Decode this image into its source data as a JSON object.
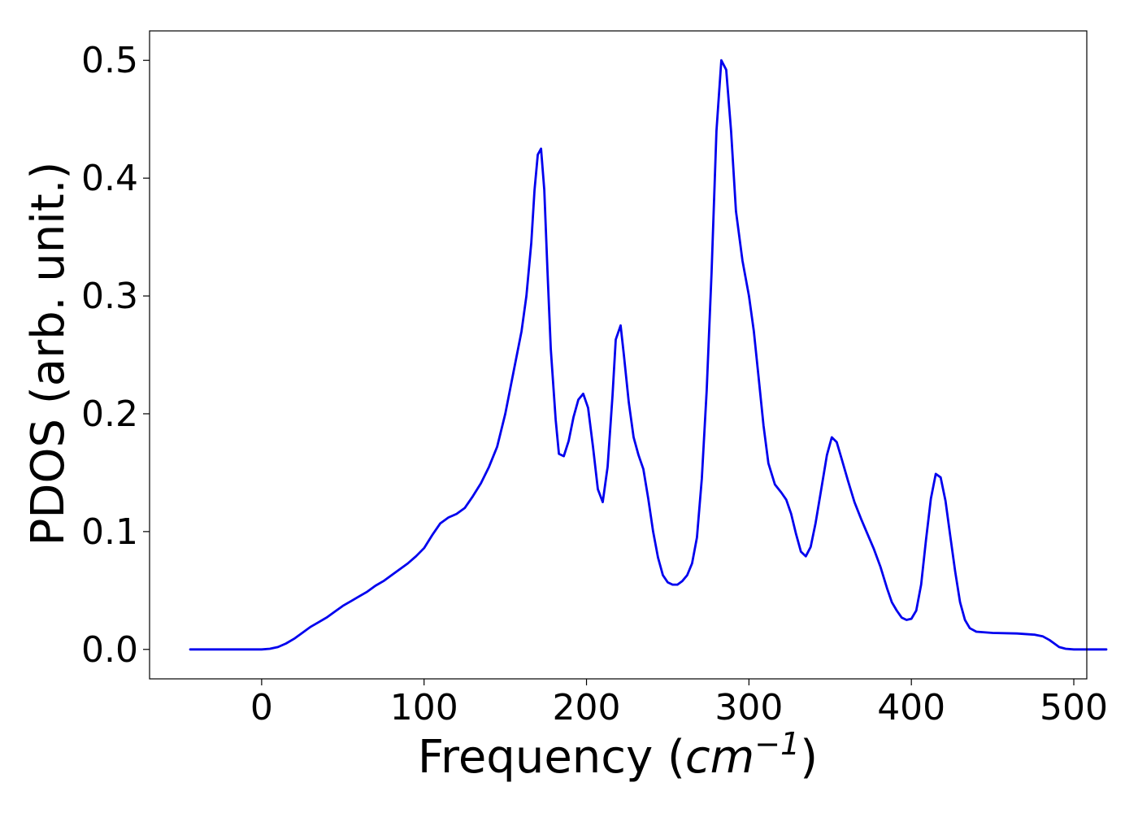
{
  "chart_data": {
    "type": "line",
    "title": "",
    "xlabel": {
      "prefix": "Frequency (",
      "unit_base": "cm",
      "unit_exponent": "−1",
      "suffix": ")"
    },
    "ylabel": "PDOS (arb. unit.)",
    "xlim": [
      -69,
      508
    ],
    "ylim": [
      -0.025,
      0.525
    ],
    "x_ticks": [
      0,
      100,
      200,
      300,
      400,
      500
    ],
    "y_ticks": [
      0.0,
      0.1,
      0.2,
      0.3,
      0.4,
      0.5
    ],
    "x_tick_labels": [
      "0",
      "100",
      "200",
      "300",
      "400",
      "500"
    ],
    "y_tick_labels": [
      "0.0",
      "0.1",
      "0.2",
      "0.3",
      "0.4",
      "0.5"
    ],
    "grid": false,
    "legend": "none",
    "series": [
      {
        "color": "#0000ee",
        "points": [
          [
            -44,
            0.0
          ],
          [
            -20,
            0.0
          ],
          [
            0,
            0.0
          ],
          [
            5,
            0.0005
          ],
          [
            10,
            0.002
          ],
          [
            15,
            0.005
          ],
          [
            20,
            0.009
          ],
          [
            25,
            0.014
          ],
          [
            30,
            0.019
          ],
          [
            35,
            0.023
          ],
          [
            40,
            0.027
          ],
          [
            45,
            0.032
          ],
          [
            50,
            0.037
          ],
          [
            55,
            0.041
          ],
          [
            60,
            0.045
          ],
          [
            65,
            0.049
          ],
          [
            70,
            0.054
          ],
          [
            75,
            0.058
          ],
          [
            80,
            0.063
          ],
          [
            85,
            0.068
          ],
          [
            90,
            0.073
          ],
          [
            95,
            0.079
          ],
          [
            100,
            0.086
          ],
          [
            105,
            0.097
          ],
          [
            110,
            0.107
          ],
          [
            115,
            0.112
          ],
          [
            120,
            0.115
          ],
          [
            125,
            0.12
          ],
          [
            130,
            0.13
          ],
          [
            135,
            0.141
          ],
          [
            140,
            0.155
          ],
          [
            145,
            0.172
          ],
          [
            150,
            0.2
          ],
          [
            155,
            0.235
          ],
          [
            160,
            0.27
          ],
          [
            163,
            0.3
          ],
          [
            166,
            0.345
          ],
          [
            168,
            0.39
          ],
          [
            170,
            0.42
          ],
          [
            172,
            0.425
          ],
          [
            174,
            0.39
          ],
          [
            176,
            0.32
          ],
          [
            178,
            0.255
          ],
          [
            181,
            0.195
          ],
          [
            183,
            0.166
          ],
          [
            186,
            0.164
          ],
          [
            189,
            0.177
          ],
          [
            192,
            0.197
          ],
          [
            195,
            0.212
          ],
          [
            198,
            0.217
          ],
          [
            201,
            0.205
          ],
          [
            204,
            0.172
          ],
          [
            207,
            0.136
          ],
          [
            210,
            0.125
          ],
          [
            213,
            0.155
          ],
          [
            216,
            0.215
          ],
          [
            218,
            0.263
          ],
          [
            221,
            0.275
          ],
          [
            223,
            0.25
          ],
          [
            226,
            0.21
          ],
          [
            229,
            0.18
          ],
          [
            232,
            0.165
          ],
          [
            235,
            0.153
          ],
          [
            238,
            0.128
          ],
          [
            241,
            0.1
          ],
          [
            244,
            0.078
          ],
          [
            247,
            0.063
          ],
          [
            250,
            0.057
          ],
          [
            253,
            0.055
          ],
          [
            256,
            0.055
          ],
          [
            259,
            0.058
          ],
          [
            262,
            0.063
          ],
          [
            265,
            0.073
          ],
          [
            268,
            0.095
          ],
          [
            271,
            0.145
          ],
          [
            274,
            0.22
          ],
          [
            277,
            0.32
          ],
          [
            280,
            0.44
          ],
          [
            283,
            0.5
          ],
          [
            286,
            0.492
          ],
          [
            289,
            0.44
          ],
          [
            292,
            0.372
          ],
          [
            296,
            0.33
          ],
          [
            300,
            0.3
          ],
          [
            303,
            0.27
          ],
          [
            306,
            0.23
          ],
          [
            309,
            0.19
          ],
          [
            312,
            0.158
          ],
          [
            316,
            0.14
          ],
          [
            320,
            0.133
          ],
          [
            323,
            0.127
          ],
          [
            326,
            0.115
          ],
          [
            329,
            0.098
          ],
          [
            332,
            0.083
          ],
          [
            335,
            0.079
          ],
          [
            338,
            0.087
          ],
          [
            341,
            0.107
          ],
          [
            345,
            0.14
          ],
          [
            348,
            0.165
          ],
          [
            351,
            0.18
          ],
          [
            354,
            0.176
          ],
          [
            357,
            0.162
          ],
          [
            361,
            0.143
          ],
          [
            365,
            0.125
          ],
          [
            369,
            0.111
          ],
          [
            373,
            0.098
          ],
          [
            377,
            0.085
          ],
          [
            381,
            0.07
          ],
          [
            385,
            0.052
          ],
          [
            388,
            0.04
          ],
          [
            391,
            0.033
          ],
          [
            394,
            0.027
          ],
          [
            397,
            0.025
          ],
          [
            400,
            0.026
          ],
          [
            403,
            0.033
          ],
          [
            406,
            0.055
          ],
          [
            409,
            0.093
          ],
          [
            412,
            0.128
          ],
          [
            415,
            0.149
          ],
          [
            418,
            0.146
          ],
          [
            421,
            0.126
          ],
          [
            424,
            0.096
          ],
          [
            427,
            0.066
          ],
          [
            430,
            0.04
          ],
          [
            433,
            0.025
          ],
          [
            436,
            0.018
          ],
          [
            440,
            0.015
          ],
          [
            450,
            0.014
          ],
          [
            465,
            0.0135
          ],
          [
            476,
            0.0125
          ],
          [
            481,
            0.011
          ],
          [
            485,
            0.008
          ],
          [
            488,
            0.005
          ],
          [
            491,
            0.002
          ],
          [
            495,
            0.0005
          ],
          [
            500,
            0.0
          ],
          [
            520,
            0.0
          ]
        ]
      }
    ]
  }
}
